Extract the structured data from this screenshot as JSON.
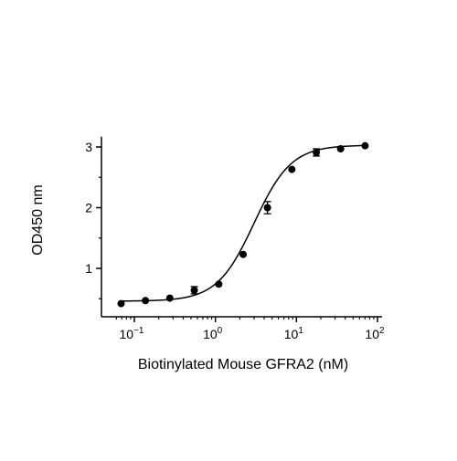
{
  "chart_data": {
    "type": "scatter",
    "title": "",
    "xlabel": "Biotinylated Mouse GFRA2 (nM)",
    "ylabel": "OD450 nm",
    "x_scale": "log",
    "xlim": [
      0.06,
      100
    ],
    "ylim": [
      0.2,
      3.2
    ],
    "x_ticks": [
      {
        "value": 0.1,
        "base": "10",
        "exp": "−1"
      },
      {
        "value": 1,
        "base": "10",
        "exp": "0"
      },
      {
        "value": 10,
        "base": "10",
        "exp": "1"
      },
      {
        "value": 100,
        "base": "10",
        "exp": "2"
      }
    ],
    "y_ticks": [
      {
        "value": 1,
        "label": "1"
      },
      {
        "value": 2,
        "label": "2"
      },
      {
        "value": 3,
        "label": "3"
      }
    ],
    "grid": false,
    "legend": "none",
    "series": [
      {
        "x": [
          0.0686,
          0.137,
          0.274,
          0.549,
          1.1,
          2.2,
          4.39,
          8.78,
          17.6,
          35.1,
          70.3
        ],
        "y": [
          0.42,
          0.47,
          0.51,
          0.64,
          0.74,
          1.23,
          2.0,
          2.63,
          2.91,
          2.97,
          3.02
        ],
        "error": [
          0.01,
          0.01,
          0.01,
          0.06,
          0.02,
          0.02,
          0.1,
          0.02,
          0.06,
          0.01,
          0.01
        ]
      }
    ],
    "fit": {
      "model": "4PL",
      "bottom": 0.46,
      "top": 3.03,
      "ec50": 3.0,
      "hill": 1.9
    },
    "colors": {
      "marker": "#000000",
      "line": "#000000",
      "axis": "#000000"
    }
  }
}
